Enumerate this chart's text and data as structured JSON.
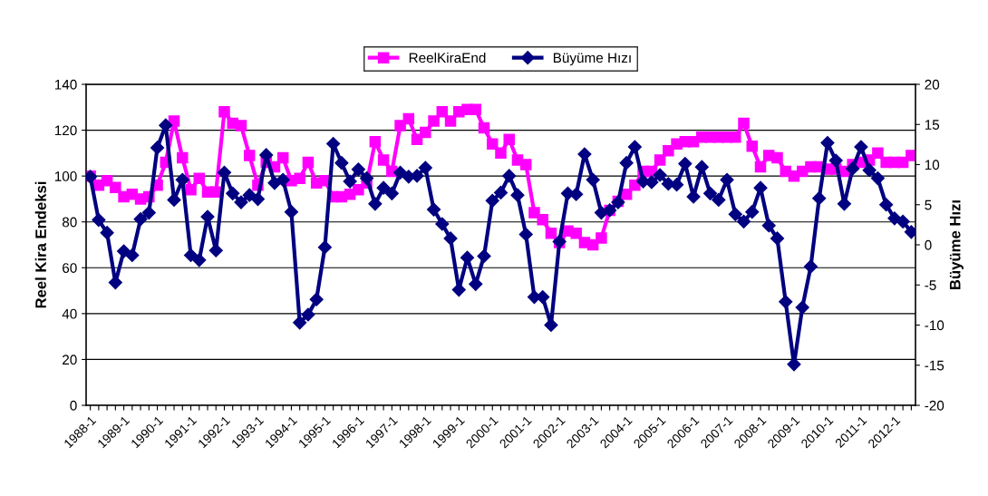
{
  "chart_data": {
    "type": "line",
    "categories": [
      "1988-1",
      null,
      null,
      null,
      "1989-1",
      null,
      null,
      null,
      "1990-1",
      null,
      null,
      null,
      "1991-1",
      null,
      null,
      null,
      "1992-1",
      null,
      null,
      null,
      "1993-1",
      null,
      null,
      null,
      "1994-1",
      null,
      null,
      null,
      "1995-1",
      null,
      null,
      null,
      "1996-1",
      null,
      null,
      null,
      "1997-1",
      null,
      null,
      null,
      "1998-1",
      null,
      null,
      null,
      "1999-1",
      null,
      null,
      null,
      "2000-1",
      null,
      null,
      null,
      "2001-1",
      null,
      null,
      null,
      "2002-1",
      null,
      null,
      null,
      "2003-1",
      null,
      null,
      null,
      "2004-1",
      null,
      null,
      null,
      "2005-1",
      null,
      null,
      null,
      "2006-1",
      null,
      null,
      null,
      "2007-1",
      null,
      null,
      null,
      "2008-1",
      null,
      null,
      null,
      "2009-1",
      null,
      null,
      null,
      "2010-1",
      null,
      null,
      null,
      "2011-1",
      null,
      null,
      null,
      "2012-1",
      null,
      null
    ],
    "series": [
      {
        "name": "ReelKiraEnd",
        "color": "#ff00ff",
        "marker": "square",
        "values": [
          100,
          96,
          98,
          95,
          91,
          92,
          90,
          91,
          96,
          106,
          124,
          108,
          94,
          99,
          93,
          93,
          128,
          123,
          122,
          109,
          96,
          106,
          104,
          108,
          98,
          99,
          106,
          97,
          98,
          91,
          91,
          92,
          94,
          97,
          115,
          107,
          102,
          122,
          125,
          116,
          119,
          124,
          128,
          124,
          128,
          129,
          129,
          121,
          114,
          110,
          116,
          107,
          105,
          84,
          81,
          75,
          71,
          76,
          75,
          71,
          70,
          73,
          85,
          89,
          92,
          96,
          102,
          102,
          107,
          111,
          114,
          115,
          115,
          117,
          117,
          117,
          117,
          117,
          123,
          113,
          104,
          109,
          108,
          102,
          100,
          102,
          104,
          104,
          103,
          103,
          102,
          105,
          106,
          107,
          110,
          106,
          106,
          106,
          109
        ]
      },
      {
        "name": "Büyüme Hızı",
        "color": "#000080",
        "marker": "diamond",
        "axis": "y2",
        "values": [
          8.5,
          3.1,
          1.5,
          -4.7,
          -0.8,
          -1.3,
          3.2,
          4.0,
          12.1,
          14.9,
          5.6,
          8.1,
          -1.3,
          -1.9,
          3.5,
          -0.7,
          9.0,
          6.4,
          5.3,
          6.2,
          5.7,
          11.2,
          7.7,
          8.1,
          4.1,
          -9.7,
          -8.7,
          -6.8,
          -0.3,
          12.6,
          10.2,
          7.9,
          9.4,
          8.3,
          5.1,
          7.1,
          6.4,
          9.0,
          8.5,
          8.6,
          9.6,
          4.4,
          2.6,
          0.8,
          -5.6,
          -1.6,
          -4.9,
          -1.4,
          5.5,
          6.5,
          8.6,
          6.2,
          1.3,
          -6.5,
          -6.5,
          -10.0,
          0.4,
          6.4,
          6.3,
          11.3,
          8.1,
          4.0,
          4.3,
          5.3,
          10.2,
          12.2,
          7.9,
          7.8,
          8.7,
          7.6,
          7.5,
          10.1,
          6.0,
          9.7,
          6.4,
          5.6,
          8.1,
          3.8,
          2.9,
          4.1,
          7.1,
          2.4,
          0.8,
          -7.1,
          -14.9,
          -7.8,
          -2.7,
          5.8,
          12.7,
          10.5,
          5.1,
          9.5,
          12.2,
          9.3,
          8.3,
          5.0,
          3.3,
          2.9,
          1.6
        ]
      }
    ],
    "ylabel": "Reel Kira Endeksi",
    "y2label": "Büyüme Hızı",
    "ylim": [
      0,
      140
    ],
    "yticks": [
      0,
      20,
      40,
      60,
      80,
      100,
      120,
      140
    ],
    "y2lim": [
      -20,
      20
    ],
    "y2ticks": [
      -20,
      -15,
      -10,
      -5,
      0,
      5,
      10,
      15,
      20
    ],
    "grid": "y",
    "legend": "top",
    "line_style": "solid"
  }
}
